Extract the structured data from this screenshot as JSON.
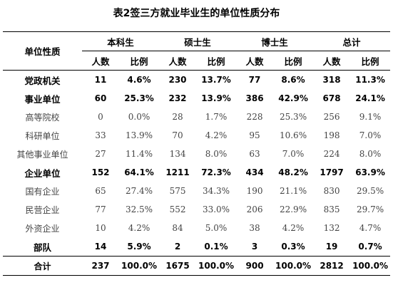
{
  "title": "表2签三方就业毕业生的单位性质分布",
  "header": {
    "row_label": "单位性质",
    "groups": [
      "本科生",
      "硕士生",
      "博士生",
      "总计"
    ],
    "sub_count": "人数",
    "sub_ratio": "比例"
  },
  "rows": [
    {
      "label": "党政机关",
      "level": "main",
      "values": [
        "11",
        "4.6%",
        "230",
        "13.7%",
        "77",
        "8.6%",
        "318",
        "11.3%"
      ]
    },
    {
      "label": "事业单位",
      "level": "main",
      "values": [
        "60",
        "25.3%",
        "232",
        "13.9%",
        "386",
        "42.9%",
        "678",
        "24.1%"
      ]
    },
    {
      "label": "高等院校",
      "level": "sub",
      "values": [
        "0",
        "0.0%",
        "28",
        "1.7%",
        "228",
        "25.3%",
        "256",
        "9.1%"
      ]
    },
    {
      "label": "科研单位",
      "level": "sub",
      "values": [
        "33",
        "13.9%",
        "70",
        "4.2%",
        "95",
        "10.6%",
        "198",
        "7.0%"
      ]
    },
    {
      "label": "其他事业单位",
      "level": "sub",
      "values": [
        "27",
        "11.4%",
        "134",
        "8.0%",
        "63",
        "7.0%",
        "224",
        "8.0%"
      ]
    },
    {
      "label": "企业单位",
      "level": "main",
      "values": [
        "152",
        "64.1%",
        "1211",
        "72.3%",
        "434",
        "48.2%",
        "1797",
        "63.9%"
      ]
    },
    {
      "label": "国有企业",
      "level": "sub",
      "values": [
        "65",
        "27.4%",
        "575",
        "34.3%",
        "190",
        "21.1%",
        "830",
        "29.5%"
      ]
    },
    {
      "label": "民营企业",
      "level": "sub",
      "values": [
        "77",
        "32.5%",
        "552",
        "33.0%",
        "206",
        "22.9%",
        "835",
        "29.7%"
      ]
    },
    {
      "label": "外资企业",
      "level": "sub",
      "values": [
        "10",
        "4.2%",
        "84",
        "5.0%",
        "38",
        "4.2%",
        "132",
        "4.7%"
      ]
    },
    {
      "label": "部队",
      "level": "main",
      "values": [
        "14",
        "5.9%",
        "2",
        "0.1%",
        "3",
        "0.3%",
        "19",
        "0.7%"
      ]
    }
  ],
  "total": {
    "label": "合计",
    "values": [
      "237",
      "100.0%",
      "1675",
      "100.0%",
      "900",
      "100.0%",
      "2812",
      "100.0%"
    ]
  }
}
